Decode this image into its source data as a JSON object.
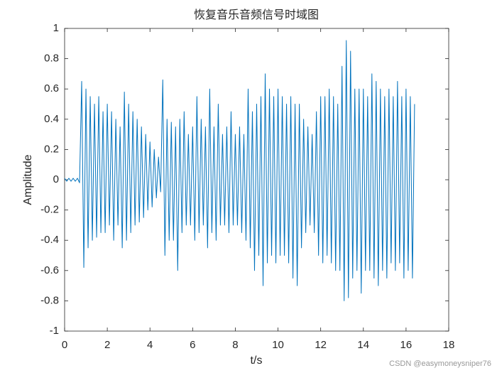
{
  "chart_data": {
    "type": "line",
    "title": "恢复音乐音频信号时域图",
    "xlabel": "t/s",
    "ylabel": "Amplitude",
    "watermark": "CSDN @easymoneysniper76",
    "xlim": [
      0,
      18
    ],
    "xticks": [
      0,
      2,
      4,
      6,
      8,
      10,
      12,
      14,
      16,
      18
    ],
    "ylim": [
      -1,
      1
    ],
    "yticks": [
      -1,
      -0.8,
      -0.6,
      -0.4,
      -0.2,
      0,
      0.2,
      0.4,
      0.6,
      0.8,
      1
    ],
    "grid": false,
    "x": [
      0.0,
      0.1,
      0.2,
      0.3,
      0.4,
      0.5,
      0.6,
      0.7,
      0.8,
      0.9,
      1.0,
      1.1,
      1.2,
      1.3,
      1.4,
      1.5,
      1.6,
      1.7,
      1.8,
      1.9,
      2.0,
      2.1,
      2.2,
      2.3,
      2.4,
      2.5,
      2.6,
      2.7,
      2.8,
      2.9,
      3.0,
      3.1,
      3.2,
      3.3,
      3.4,
      3.5,
      3.6,
      3.7,
      3.8,
      3.9,
      4.0,
      4.1,
      4.2,
      4.3,
      4.4,
      4.5,
      4.6,
      4.7,
      4.8,
      4.9,
      5.0,
      5.1,
      5.2,
      5.3,
      5.4,
      5.5,
      5.6,
      5.7,
      5.8,
      5.9,
      6.0,
      6.1,
      6.2,
      6.3,
      6.4,
      6.5,
      6.6,
      6.7,
      6.8,
      6.9,
      7.0,
      7.1,
      7.2,
      7.3,
      7.4,
      7.5,
      7.6,
      7.7,
      7.8,
      7.9,
      8.0,
      8.1,
      8.2,
      8.3,
      8.4,
      8.5,
      8.6,
      8.7,
      8.8,
      8.9,
      9.0,
      9.1,
      9.2,
      9.3,
      9.4,
      9.5,
      9.6,
      9.7,
      9.8,
      9.9,
      10.0,
      10.1,
      10.2,
      10.3,
      10.4,
      10.5,
      10.6,
      10.7,
      10.8,
      10.9,
      11.0,
      11.1,
      11.2,
      11.3,
      11.4,
      11.5,
      11.6,
      11.7,
      11.8,
      11.9,
      12.0,
      12.1,
      12.2,
      12.3,
      12.4,
      12.5,
      12.6,
      12.7,
      12.8,
      12.9,
      13.0,
      13.1,
      13.2,
      13.3,
      13.4,
      13.5,
      13.6,
      13.7,
      13.8,
      13.9,
      14.0,
      14.1,
      14.2,
      14.3,
      14.4,
      14.5,
      14.6,
      14.7,
      14.8,
      14.9,
      15.0,
      15.1,
      15.2,
      15.3,
      15.4,
      15.5,
      15.6,
      15.7,
      15.8,
      15.9,
      16.0,
      16.1,
      16.2,
      16.3,
      16.4
    ],
    "series": [
      {
        "color": "#0072bd",
        "values": [
          0.01,
          -0.01,
          0.01,
          -0.01,
          0.01,
          -0.01,
          0.01,
          -0.02,
          0.65,
          -0.58,
          0.6,
          -0.45,
          0.55,
          -0.4,
          0.5,
          -0.38,
          0.55,
          -0.35,
          0.45,
          -0.35,
          0.5,
          -0.3,
          0.45,
          -0.4,
          0.4,
          -0.3,
          0.35,
          -0.45,
          0.58,
          -0.4,
          0.5,
          -0.35,
          0.45,
          -0.3,
          0.4,
          -0.28,
          0.35,
          -0.25,
          0.3,
          -0.2,
          0.25,
          -0.18,
          0.2,
          -0.12,
          0.15,
          -0.08,
          0.66,
          -0.5,
          0.4,
          -0.4,
          0.38,
          -0.4,
          0.35,
          -0.6,
          0.4,
          -0.35,
          0.45,
          -0.3,
          0.3,
          -0.3,
          0.35,
          -0.4,
          0.55,
          -0.35,
          0.4,
          -0.3,
          0.35,
          -0.45,
          0.6,
          -0.35,
          0.35,
          -0.4,
          0.5,
          -0.3,
          0.3,
          -0.3,
          0.35,
          -0.35,
          0.45,
          -0.3,
          0.3,
          -0.3,
          0.35,
          -0.35,
          0.3,
          -0.4,
          0.6,
          -0.45,
          0.45,
          -0.6,
          0.5,
          -0.5,
          0.55,
          -0.7,
          0.7,
          -0.55,
          0.6,
          -0.5,
          0.55,
          -0.55,
          0.6,
          -0.5,
          0.55,
          -0.5,
          0.5,
          -0.55,
          0.55,
          -0.65,
          0.5,
          -0.7,
          0.5,
          -0.45,
          0.4,
          -0.35,
          0.35,
          -0.3,
          0.3,
          -0.35,
          0.45,
          -0.5,
          0.55,
          -0.55,
          0.55,
          -0.5,
          0.6,
          -0.55,
          0.55,
          -0.6,
          0.5,
          -0.6,
          0.75,
          -0.8,
          0.92,
          -0.78,
          0.85,
          -0.65,
          0.6,
          -0.6,
          0.6,
          -0.75,
          0.6,
          -0.6,
          0.55,
          -0.6,
          0.7,
          -0.65,
          0.65,
          -0.7,
          0.6,
          -0.6,
          0.55,
          -0.65,
          0.6,
          -0.55,
          0.55,
          -0.6,
          0.65,
          -0.55,
          0.55,
          -0.65,
          0.6,
          -0.6,
          0.55,
          -0.65,
          0.5
        ]
      }
    ]
  }
}
